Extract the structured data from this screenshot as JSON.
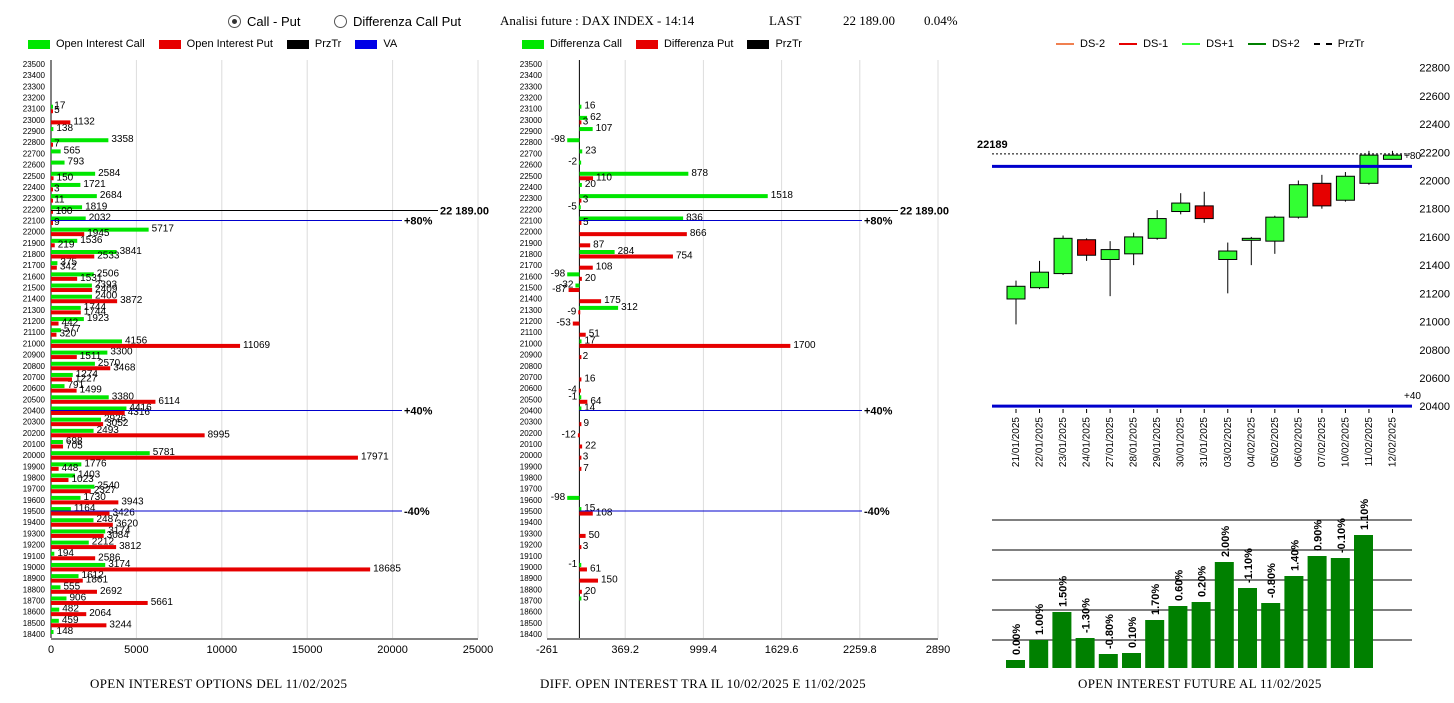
{
  "header": {
    "radio_call_put": "Call - Put",
    "radio_diff": "Differenza Call Put",
    "title": "Analisi future : DAX INDEX - 14:14",
    "last_label": "LAST",
    "last_value": "22 189.00",
    "change": "0.04%"
  },
  "legend_left": [
    {
      "label": "Open Interest Call",
      "color": "#00e600"
    },
    {
      "label": "Open Interest Put",
      "color": "#e60000"
    },
    {
      "label": "PrzTr",
      "color": "#000000"
    },
    {
      "label": "VA",
      "color": "#0000e6"
    }
  ],
  "legend_mid": [
    {
      "label": "Differenza Call",
      "color": "#00e600"
    },
    {
      "label": "Differenza Put",
      "color": "#e60000"
    },
    {
      "label": "PrzTr",
      "color": "#000000"
    }
  ],
  "legend_right": [
    {
      "label": "DS-2",
      "color": "#f08050"
    },
    {
      "label": "DS-1",
      "color": "#e60000"
    },
    {
      "label": "DS+1",
      "color": "#33ff33"
    },
    {
      "label": "DS+2",
      "color": "#008000"
    },
    {
      "label": "PrzTr",
      "color": "#000000"
    }
  ],
  "captions": {
    "left": "OPEN INTEREST OPTIONS DEL 11/02/2025",
    "mid": "DIFF. OPEN INTEREST TRA IL 10/02/2025 E 11/02/2025",
    "right": "OPEN INTEREST FUTURE AL 11/02/2025"
  },
  "chart_data": [
    {
      "type": "bar",
      "orientation": "horizontal",
      "strikes": [
        23500,
        23400,
        23300,
        23200,
        23100,
        23000,
        22900,
        22800,
        22700,
        22600,
        22500,
        22400,
        22300,
        22200,
        22100,
        22000,
        21900,
        21800,
        21700,
        21600,
        21500,
        21400,
        21300,
        21200,
        21100,
        21000,
        20900,
        20800,
        20700,
        20600,
        20500,
        20400,
        20300,
        20200,
        20100,
        20000,
        19900,
        19800,
        19700,
        19600,
        19500,
        19400,
        19300,
        19200,
        19100,
        19000,
        18900,
        18800,
        18700,
        18600,
        18500,
        18400
      ],
      "series": [
        {
          "name": "Open Interest Call",
          "values": [
            null,
            null,
            null,
            null,
            17,
            null,
            138,
            3358,
            565,
            793,
            2584,
            1721,
            2684,
            1819,
            2032,
            5717,
            1536,
            3841,
            375,
            2506,
            2393,
            2400,
            1744,
            1923,
            577,
            4156,
            3300,
            2570,
            1274,
            791,
            3380,
            4416,
            2926,
            2493,
            698,
            5781,
            1776,
            1403,
            2540,
            1730,
            1164,
            2487,
            3174,
            2212,
            194,
            3174,
            1612,
            555,
            906,
            482,
            459,
            148
          ]
        },
        {
          "name": "Open Interest Put",
          "values": [
            null,
            null,
            null,
            null,
            5,
            1132,
            null,
            7,
            null,
            null,
            150,
            3,
            11,
            100,
            9,
            1945,
            219,
            2533,
            342,
            1531,
            2409,
            3872,
            1744,
            442,
            320,
            11069,
            1511,
            3468,
            1227,
            1499,
            6114,
            4316,
            3052,
            8995,
            705,
            17971,
            448,
            1023,
            2327,
            3943,
            3426,
            3620,
            3084,
            3812,
            2586,
            18685,
            1861,
            2692,
            5661,
            2064,
            3244,
            null
          ]
        }
      ],
      "xticks": [
        0,
        5000,
        10000,
        15000,
        20000,
        25000
      ],
      "xlim": [
        0,
        25000
      ],
      "price_label": "22 189.00",
      "price_strike": 22189,
      "va_lines": [
        {
          "strike": 22100,
          "label": "+80%"
        },
        {
          "strike": 20400,
          "label": "+40%"
        },
        {
          "strike": 19500,
          "label": "-40%"
        }
      ]
    },
    {
      "type": "bar",
      "orientation": "horizontal",
      "strikes": [
        23500,
        23400,
        23300,
        23200,
        23100,
        23000,
        22900,
        22800,
        22700,
        22600,
        22500,
        22400,
        22300,
        22200,
        22100,
        22000,
        21900,
        21800,
        21700,
        21600,
        21500,
        21400,
        21300,
        21200,
        21100,
        21000,
        20900,
        20800,
        20700,
        20600,
        20500,
        20400,
        20300,
        20200,
        20100,
        20000,
        19900,
        19800,
        19700,
        19600,
        19500,
        19400,
        19300,
        19200,
        19100,
        19000,
        18900,
        18800,
        18700,
        18600,
        18500,
        18400
      ],
      "series": [
        {
          "name": "Differenza Call",
          "values": [
            null,
            null,
            null,
            null,
            16,
            62,
            107,
            -98,
            23,
            -2,
            878,
            20,
            1518,
            -5,
            836,
            null,
            null,
            284,
            null,
            -98,
            -32,
            null,
            312,
            null,
            null,
            17,
            null,
            null,
            null,
            null,
            -1,
            14,
            null,
            null,
            null,
            null,
            null,
            null,
            null,
            -98,
            15,
            null,
            null,
            null,
            null,
            -1,
            null,
            null,
            5,
            null,
            null,
            null
          ]
        },
        {
          "name": "Differenza Put",
          "values": [
            null,
            null,
            null,
            null,
            null,
            3,
            null,
            null,
            null,
            null,
            110,
            null,
            3,
            null,
            5,
            866,
            87,
            754,
            108,
            20,
            -87,
            175,
            -9,
            -53,
            51,
            1700,
            2,
            null,
            16,
            -4,
            64,
            null,
            9,
            -12,
            22,
            3,
            7,
            null,
            null,
            null,
            108,
            null,
            50,
            3,
            null,
            61,
            150,
            20,
            null,
            null,
            null,
            null
          ]
        }
      ],
      "xticks": [
        -261,
        369.2,
        999.4,
        1629.6,
        2259.8,
        2890
      ],
      "xtick_labels": [
        "-261",
        "369.2",
        "999.4",
        "1629.6",
        "2259.8",
        "2890"
      ],
      "xlim": [
        -261,
        2890
      ],
      "price_label": "22 189.00",
      "price_strike": 22189,
      "va_lines": [
        {
          "strike": 22100,
          "label": "+80%"
        },
        {
          "strike": 20400,
          "label": "+40%"
        },
        {
          "strike": 19500,
          "label": "-40%"
        }
      ]
    },
    {
      "type": "candlestick",
      "dates": [
        "21/01/2025",
        "22/01/2025",
        "23/01/2025",
        "24/01/2025",
        "27/01/2025",
        "28/01/2025",
        "29/01/2025",
        "30/01/2025",
        "31/01/2025",
        "03/02/2025",
        "04/02/2025",
        "05/02/2025",
        "06/02/2025",
        "07/02/2025",
        "10/02/2025",
        "11/02/2025",
        "12/02/2025"
      ],
      "open": [
        21160,
        21240,
        21340,
        21580,
        21440,
        21480,
        21590,
        21780,
        21820,
        21440,
        21580,
        21570,
        21740,
        21980,
        21860,
        21980,
        22150
      ],
      "close": [
        21250,
        21350,
        21590,
        21470,
        21510,
        21600,
        21730,
        21840,
        21730,
        21500,
        21590,
        21740,
        21970,
        21820,
        22030,
        22180,
        22180
      ],
      "high": [
        21290,
        21430,
        21610,
        21590,
        21570,
        21630,
        21790,
        21910,
        21920,
        21560,
        21600,
        21750,
        22000,
        22040,
        22060,
        22210,
        22210
      ],
      "low": [
        20980,
        21230,
        21330,
        21430,
        21180,
        21400,
        21580,
        21760,
        21700,
        21200,
        21400,
        21480,
        21730,
        21800,
        21850,
        21970,
        22150
      ],
      "yticks": [
        20400,
        20600,
        20800,
        21000,
        21200,
        21400,
        21600,
        21800,
        22000,
        22200,
        22400,
        22600,
        22800
      ],
      "ylim": [
        20380,
        22840
      ],
      "price_label": "22189",
      "price_value": 22189,
      "blue_lines": [
        22100,
        20400
      ],
      "right_labels": [
        {
          "value": 22180,
          "label": "+80"
        },
        {
          "value": 20480,
          "label": "+40"
        }
      ]
    },
    {
      "type": "bar",
      "values": [
        0.0,
        1.0,
        1.5,
        -1.3,
        -0.8,
        0.1,
        1.7,
        0.6,
        0.2,
        2.0,
        -1.1,
        -0.8,
        1.4,
        0.9,
        -0.1,
        1.1
      ],
      "labels": [
        "0.00%",
        "1.00%",
        "1.50%",
        "-1.30%",
        "-0.80%",
        "0.10%",
        "1.70%",
        "0.60%",
        "0.20%",
        "2.00%",
        "-1.10%",
        "-0.80%",
        "1.40%",
        "0.90%",
        "-0.10%",
        "1.10%"
      ],
      "heights": [
        8,
        28,
        56,
        30,
        14,
        15,
        48,
        62,
        66,
        106,
        80,
        65,
        92,
        112,
        110,
        133
      ]
    }
  ]
}
